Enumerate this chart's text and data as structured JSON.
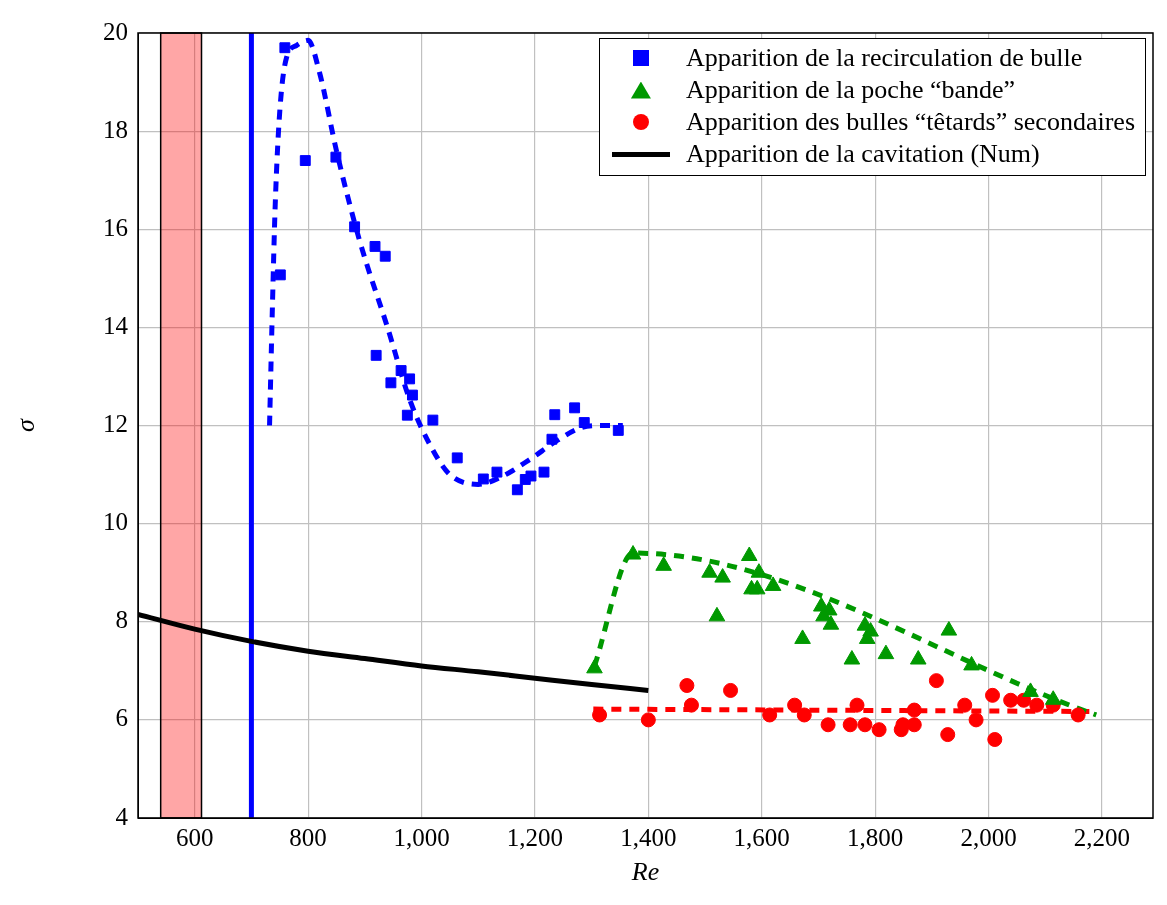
{
  "chart_data": {
    "type": "scatter",
    "xlabel": "Re",
    "ylabel": "σ",
    "xlim": [
      500,
      2290
    ],
    "ylim": [
      4,
      20
    ],
    "xticks": [
      600,
      800,
      {
        "value": 1000,
        "label": "1,000"
      },
      {
        "value": 1200,
        "label": "1,200"
      },
      {
        "value": 1400,
        "label": "1,400"
      },
      {
        "value": 1600,
        "label": "1,600"
      },
      {
        "value": 1800,
        "label": "1,800"
      },
      {
        "value": 2000,
        "label": "2,000"
      },
      {
        "value": 2200,
        "label": "2,200"
      }
    ],
    "yticks": [
      4,
      6,
      8,
      10,
      12,
      14,
      16,
      18,
      20
    ],
    "grid": true,
    "legend": "top right",
    "ref_lines": [
      {
        "axis": "x",
        "value": 700,
        "color": "#0000ff"
      }
    ],
    "bands": [
      {
        "axis": "x",
        "from": 540,
        "to": 612,
        "color": "#ff0000"
      }
    ],
    "series": [
      {
        "type": "scatter",
        "name": "Apparition de la recirculation de bulle",
        "color": "#0000ff",
        "marker": "square",
        "x": [
          759,
          795,
          849,
          882,
          918,
          936,
          751,
          920,
          964,
          946,
          979,
          984,
          975,
          1020,
          1063,
          1109,
          1133,
          1169,
          1183,
          1193,
          1216,
          1230,
          1235,
          1270,
          1287,
          1347
        ],
        "values": [
          19.7,
          17.4,
          17.47,
          16.05,
          15.65,
          15.45,
          15.07,
          13.43,
          13.12,
          12.87,
          12.95,
          12.62,
          12.21,
          12.11,
          11.34,
          10.91,
          11.05,
          10.69,
          10.9,
          10.97,
          11.05,
          11.72,
          12.22,
          12.36,
          12.06,
          11.9
        ]
      },
      {
        "type": "scatter",
        "name": "Apparition de la poche “bande”",
        "color": "#009900",
        "marker": "triangle",
        "x": [
          1305,
          1373,
          1427,
          1508,
          1531,
          1521,
          1578,
          1595,
          1592,
          1582,
          1620,
          1672,
          1705,
          1719,
          1709,
          1722,
          1759,
          1782,
          1792,
          1786,
          1819,
          1876,
          1930,
          1970,
          2074,
          2114
        ],
        "values": [
          7.05,
          9.37,
          9.14,
          9.0,
          8.9,
          8.11,
          9.34,
          9.0,
          8.66,
          8.66,
          8.73,
          7.65,
          8.31,
          8.23,
          8.11,
          7.94,
          7.23,
          7.92,
          7.8,
          7.65,
          7.34,
          7.23,
          7.82,
          7.11,
          6.57,
          6.41
        ]
      },
      {
        "type": "scatter",
        "name": "Apparition des bulles “têtards” secondaires",
        "color": "#ff0000",
        "marker": "circle",
        "x": [
          1314,
          1400,
          1468,
          1476,
          1545,
          1614,
          1658,
          1675,
          1717,
          1756,
          1768,
          1782,
          1807,
          1846,
          1849,
          1869,
          1869,
          1908,
          1928,
          1958,
          1978,
          2007,
          2011,
          2039,
          2062,
          2085,
          2114,
          2158
        ],
        "values": [
          6.1,
          6.0,
          6.7,
          6.3,
          6.6,
          6.1,
          6.3,
          6.1,
          5.9,
          5.9,
          6.3,
          5.9,
          5.8,
          5.8,
          5.9,
          6.2,
          5.9,
          6.8,
          5.7,
          6.3,
          6.0,
          6.5,
          5.6,
          6.4,
          6.4,
          6.3,
          6.3,
          6.1
        ]
      },
      {
        "type": "line",
        "name": "Apparition de la cavitation (Num)",
        "color": "#000000",
        "line_style": "solid",
        "marker": "none",
        "x": [
          500,
          600,
          700,
          800,
          900,
          1000,
          1100,
          1200,
          1300,
          1400
        ],
        "values": [
          8.15,
          7.85,
          7.6,
          7.4,
          7.25,
          7.1,
          6.98,
          6.85,
          6.72,
          6.6
        ]
      },
      {
        "type": "line",
        "color": "#0000ff",
        "line_style": "dashed",
        "marker": "none",
        "x": [
          732,
          737,
          742,
          750,
          762,
          780,
          800,
          820,
          850,
          890,
          940,
          980,
          1020,
          1050,
          1100,
          1140,
          1190,
          1240,
          1280,
          1320,
          1355
        ],
        "values": [
          12.0,
          14.4,
          16.5,
          18.4,
          19.5,
          19.75,
          19.85,
          19.2,
          17.6,
          15.8,
          14.0,
          12.5,
          11.5,
          11.0,
          10.8,
          10.95,
          11.3,
          11.7,
          11.95,
          12.0,
          12.0
        ]
      },
      {
        "type": "line",
        "color": "#009900",
        "line_style": "dashed",
        "marker": "none",
        "x": [
          1305,
          1373,
          2190
        ],
        "values": [
          7.1,
          9.4,
          6.1
        ]
      },
      {
        "type": "line",
        "color": "#ff0000",
        "line_style": "dashed",
        "marker": "none",
        "x": [
          1303,
          2187
        ],
        "values": [
          6.22,
          6.17
        ]
      }
    ]
  }
}
